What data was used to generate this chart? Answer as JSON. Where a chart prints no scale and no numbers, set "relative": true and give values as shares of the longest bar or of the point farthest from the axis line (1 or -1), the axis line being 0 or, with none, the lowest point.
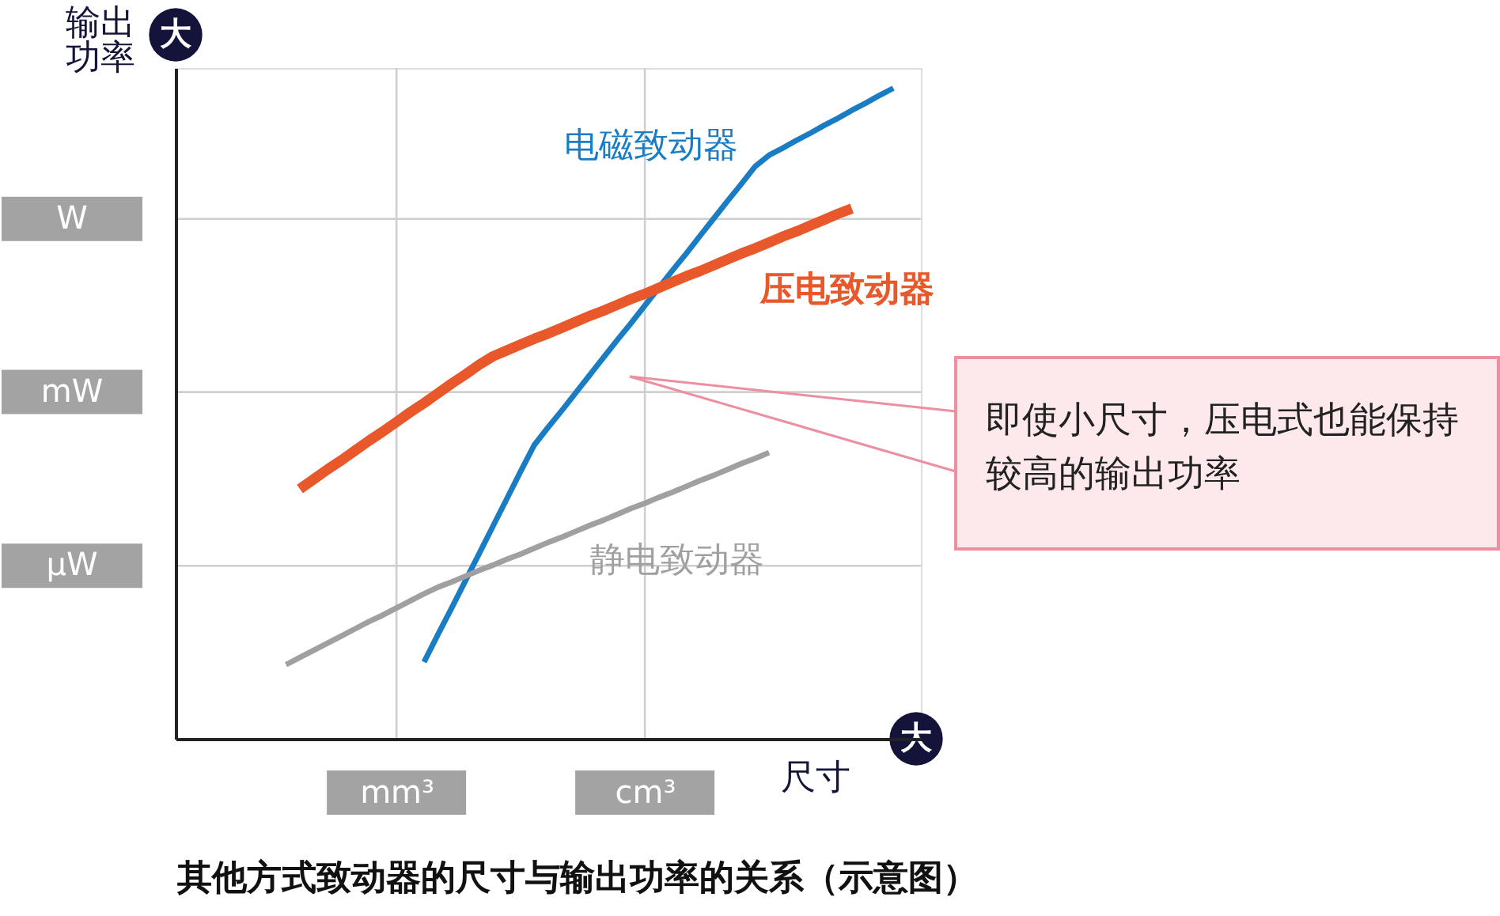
{
  "chart_data": {
    "type": "line",
    "relative": true,
    "grid": "x",
    "title": "其他方式致动器的尺寸与输出功率的关系（示意图）",
    "xlabel": "尺寸",
    "ylabel": "输出功率",
    "categories": [
      null,
      null,
      null,
      null,
      null,
      null,
      null,
      null,
      null,
      null,
      null,
      null,
      null,
      null,
      null,
      null,
      "mm³",
      null,
      null,
      null,
      null,
      null,
      null,
      null,
      null,
      null,
      null,
      null,
      null,
      null,
      null,
      null,
      null,
      null,
      "cm³",
      null,
      null,
      null,
      null,
      null,
      null,
      null,
      null,
      null,
      null,
      null,
      null,
      null,
      null,
      null,
      null,
      null,
      null,
      null,
      null
    ],
    "series": [
      {
        "name": "电磁致动器",
        "color": "#1a7dc4",
        "values": [
          null,
          null,
          null,
          null,
          null,
          null,
          null,
          null,
          null,
          null,
          null,
          null,
          null,
          null,
          null,
          null,
          null,
          null,
          0.118,
          0.16,
          0.201,
          0.243,
          0.285,
          0.327,
          0.369,
          0.411,
          0.452,
          0.479,
          0.505,
          0.532,
          0.559,
          0.586,
          0.613,
          0.639,
          0.666,
          0.693,
          0.72,
          0.746,
          0.773,
          0.8,
          0.827,
          0.853,
          0.88,
          0.897,
          0.908,
          0.92,
          0.931,
          0.943,
          0.954,
          0.966,
          0.977,
          0.989,
          1,
          null,
          null
        ]
      },
      {
        "name": "压电致动器",
        "color": "#e8582a",
        "values": [
          null,
          null,
          null,
          null,
          null,
          null,
          null,
          null,
          null,
          0.384,
          0.399,
          0.414,
          0.428,
          0.443,
          0.458,
          0.472,
          0.487,
          0.502,
          0.516,
          0.531,
          0.546,
          0.56,
          0.575,
          0.588,
          0.597,
          0.606,
          0.615,
          0.623,
          0.632,
          0.641,
          0.65,
          0.658,
          0.667,
          0.676,
          0.684,
          0.693,
          0.702,
          0.711,
          0.719,
          0.728,
          0.737,
          0.746,
          0.754,
          0.763,
          0.772,
          0.78,
          0.789,
          0.798,
          0.807,
          0.815,
          null,
          null,
          null,
          null,
          null
        ]
      },
      {
        "name": "静电致动器",
        "color": "#a0a0a0",
        "values": [
          null,
          null,
          null,
          null,
          null,
          null,
          null,
          null,
          0.114,
          0.125,
          0.136,
          0.147,
          0.158,
          0.169,
          0.18,
          0.19,
          0.201,
          0.212,
          0.223,
          0.233,
          0.241,
          0.25,
          0.259,
          0.267,
          0.276,
          0.284,
          0.293,
          0.302,
          0.31,
          0.319,
          0.328,
          0.336,
          0.345,
          0.354,
          0.362,
          0.371,
          0.379,
          0.388,
          0.397,
          0.405,
          0.414,
          0.423,
          0.431,
          0.44,
          null,
          null,
          null,
          null,
          null,
          null,
          null,
          null,
          null,
          null,
          null
        ]
      }
    ],
    "ref_lines": [
      {
        "axis": "y",
        "value": 0.266,
        "label": "μW"
      },
      {
        "axis": "y",
        "value": 0.533,
        "label": "mW"
      },
      {
        "axis": "y",
        "value": 0.799,
        "label": "W"
      }
    ],
    "annotations": [
      "大",
      "大",
      "即使小尺寸，压电式也能保持较高的输出功率"
    ]
  }
}
